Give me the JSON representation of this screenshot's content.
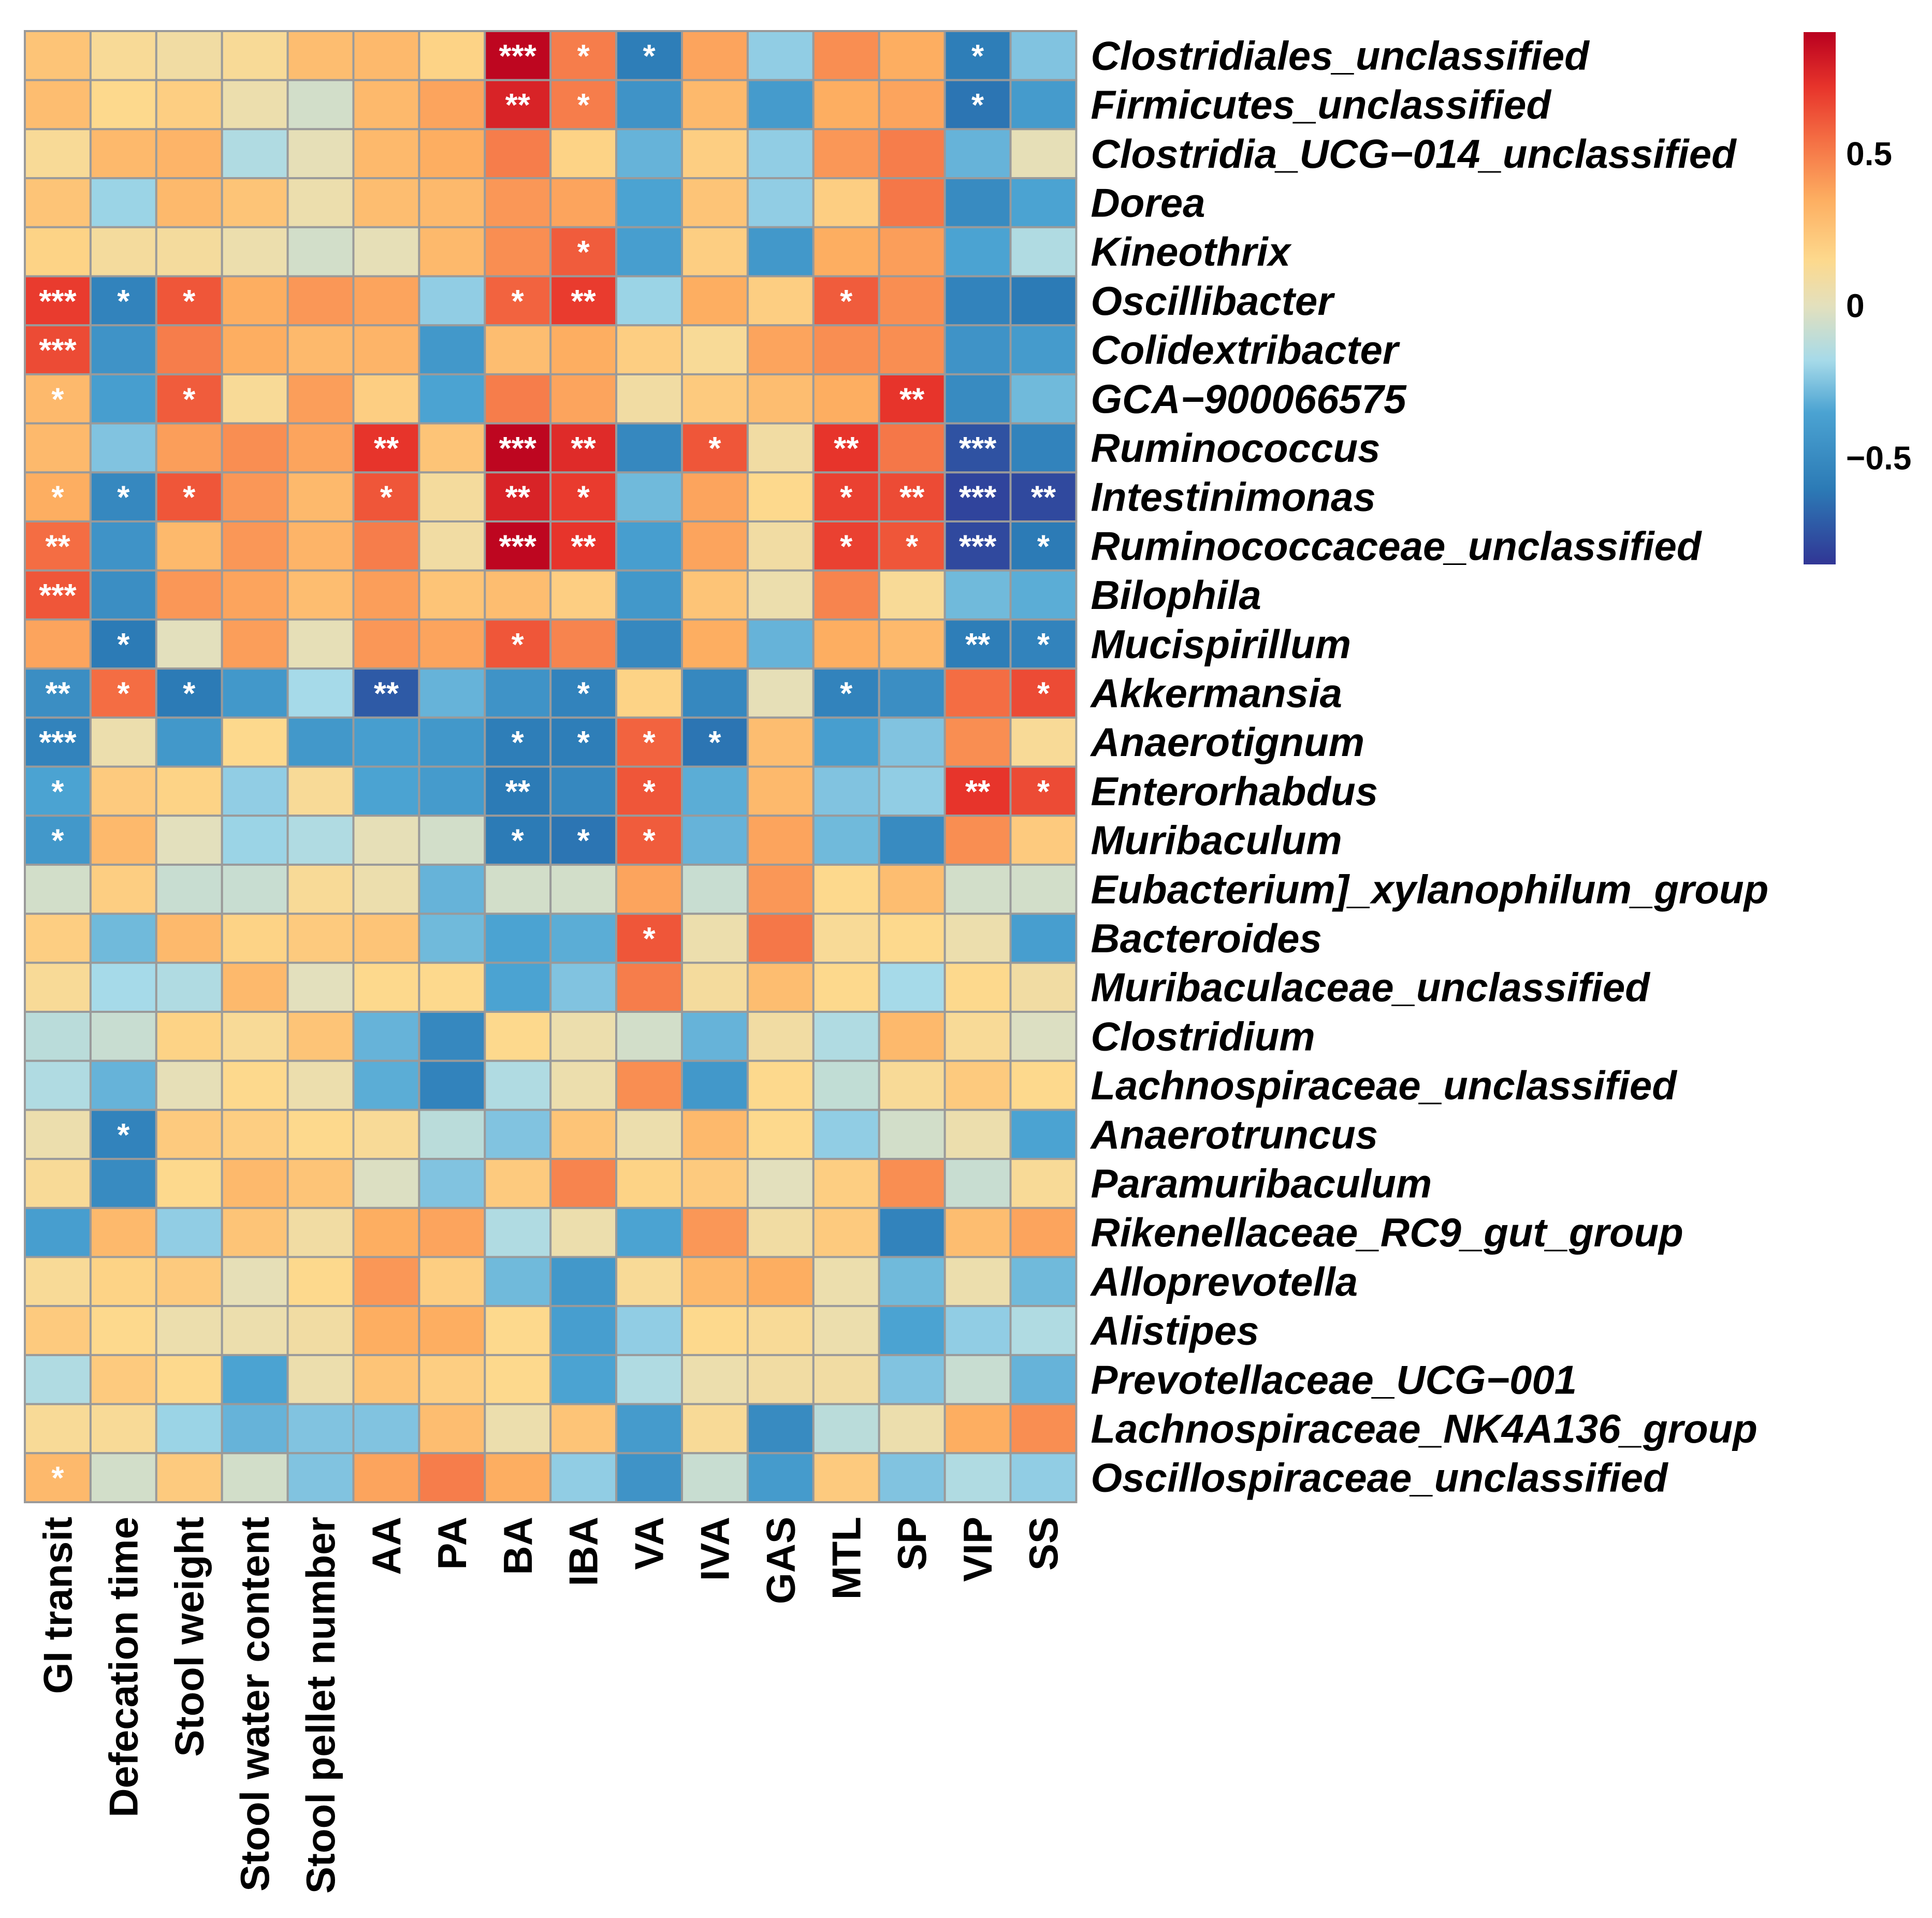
{
  "chart_data": {
    "type": "heatmap",
    "title": "",
    "rows": [
      "Clostridiales_unclassified",
      "Firmicutes_unclassified",
      "Clostridia_UCG−014_unclassified",
      "Dorea",
      "Kineothrix",
      "Oscillibacter",
      "Colidextribacter",
      "GCA−900066575",
      "Ruminococcus",
      "Intestinimonas",
      "Ruminococcaceae_unclassified",
      "Bilophila",
      "Mucispirillum",
      "Akkermansia",
      "Anaerotignum",
      "Enterorhabdus",
      "Muribaculum",
      "Eubacterium]_xylanophilum_group",
      "Bacteroides",
      "Muribaculaceae_unclassified",
      "Clostridium",
      "Lachnospiraceae_unclassified",
      "Anaerotruncus",
      "Paramuribaculum",
      "Rikenellaceae_RC9_gut_group",
      "Alloprevotella",
      "Alistipes",
      "Prevotellaceae_UCG−001",
      "Lachnospiraceae_NK4A136_group",
      "Oscillospiraceae_unclassified"
    ],
    "columns": [
      "GI transit",
      "Defecation time",
      "Stool weight",
      "Stool water content",
      "Stool pellet number",
      "AA",
      "PA",
      "BA",
      "IBA",
      "VA",
      "IVA",
      "GAS",
      "MTL",
      "SP",
      "VIP",
      "SS"
    ],
    "values": [
      [
        0.25,
        0.12,
        0.08,
        0.12,
        0.28,
        0.3,
        0.18,
        0.88,
        0.5,
        -0.58,
        0.38,
        -0.22,
        0.45,
        0.35,
        -0.58,
        -0.25
      ],
      [
        0.28,
        0.15,
        0.2,
        0.05,
        -0.05,
        0.3,
        0.38,
        0.78,
        0.5,
        -0.45,
        0.3,
        -0.4,
        0.35,
        0.38,
        -0.62,
        -0.4
      ],
      [
        0.12,
        0.3,
        0.32,
        -0.15,
        0.02,
        0.3,
        0.35,
        0.5,
        0.18,
        -0.3,
        0.2,
        -0.22,
        0.42,
        0.5,
        -0.3,
        0.02
      ],
      [
        0.25,
        -0.2,
        0.3,
        0.25,
        0.05,
        0.28,
        0.3,
        0.42,
        0.38,
        -0.35,
        0.25,
        -0.22,
        0.2,
        0.52,
        -0.5,
        -0.35
      ],
      [
        0.18,
        0.1,
        0.1,
        0.05,
        -0.05,
        0.02,
        0.3,
        0.45,
        0.6,
        -0.38,
        0.2,
        -0.42,
        0.35,
        0.4,
        -0.35,
        -0.15
      ],
      [
        0.7,
        -0.55,
        0.62,
        0.35,
        0.42,
        0.38,
        -0.22,
        0.58,
        0.7,
        -0.2,
        0.35,
        0.2,
        0.6,
        0.45,
        -0.55,
        -0.6
      ],
      [
        0.65,
        -0.45,
        0.5,
        0.35,
        0.3,
        0.32,
        -0.42,
        0.28,
        0.35,
        0.2,
        0.12,
        0.38,
        0.45,
        0.45,
        -0.45,
        -0.4
      ],
      [
        0.3,
        -0.38,
        0.6,
        0.12,
        0.4,
        0.2,
        -0.35,
        0.5,
        0.38,
        0.08,
        0.22,
        0.28,
        0.35,
        0.72,
        -0.5,
        -0.28
      ],
      [
        0.3,
        -0.25,
        0.4,
        0.45,
        0.38,
        0.72,
        0.25,
        0.88,
        0.75,
        -0.52,
        0.62,
        0.08,
        0.72,
        0.52,
        -0.75,
        -0.55
      ],
      [
        0.35,
        -0.52,
        0.62,
        0.42,
        0.3,
        0.62,
        0.1,
        0.78,
        0.7,
        -0.28,
        0.38,
        0.15,
        0.68,
        0.65,
        -0.8,
        -0.78
      ],
      [
        0.55,
        -0.45,
        0.3,
        0.42,
        0.32,
        0.5,
        0.08,
        0.88,
        0.72,
        -0.38,
        0.38,
        0.08,
        0.68,
        0.62,
        -0.78,
        -0.6
      ],
      [
        0.62,
        -0.48,
        0.42,
        0.38,
        0.28,
        0.4,
        0.25,
        0.28,
        0.2,
        -0.42,
        0.25,
        0.05,
        0.48,
        0.12,
        -0.28,
        -0.32
      ],
      [
        0.38,
        -0.6,
        0.0,
        0.4,
        0.02,
        0.42,
        0.38,
        0.62,
        0.48,
        -0.52,
        0.35,
        -0.3,
        0.35,
        0.3,
        -0.58,
        -0.55
      ],
      [
        -0.48,
        0.55,
        -0.6,
        -0.42,
        -0.18,
        -0.72,
        -0.3,
        -0.45,
        -0.55,
        0.18,
        -0.52,
        0.02,
        -0.55,
        -0.48,
        0.55,
        0.65
      ],
      [
        -0.55,
        0.05,
        -0.42,
        0.15,
        -0.42,
        -0.38,
        -0.42,
        -0.58,
        -0.58,
        0.58,
        -0.62,
        0.28,
        -0.38,
        -0.25,
        0.45,
        0.12
      ],
      [
        -0.35,
        0.22,
        0.18,
        -0.22,
        0.12,
        -0.35,
        -0.4,
        -0.6,
        -0.52,
        0.62,
        -0.32,
        0.3,
        -0.25,
        -0.22,
        0.72,
        0.65
      ],
      [
        -0.42,
        0.3,
        0.0,
        -0.2,
        -0.15,
        0.02,
        -0.05,
        -0.6,
        -0.62,
        0.6,
        -0.3,
        0.38,
        -0.28,
        -0.5,
        0.45,
        0.22
      ],
      [
        -0.05,
        0.2,
        -0.08,
        -0.08,
        0.12,
        0.05,
        -0.3,
        -0.05,
        -0.05,
        0.38,
        -0.08,
        0.42,
        0.15,
        0.28,
        -0.05,
        -0.05
      ],
      [
        0.2,
        -0.28,
        0.3,
        0.18,
        0.22,
        0.25,
        -0.28,
        -0.35,
        -0.32,
        0.62,
        0.05,
        0.52,
        0.12,
        0.15,
        0.05,
        -0.38
      ],
      [
        0.12,
        -0.18,
        -0.15,
        0.3,
        0.0,
        0.15,
        0.15,
        -0.35,
        -0.25,
        0.5,
        0.1,
        0.28,
        0.15,
        -0.18,
        0.15,
        0.08
      ],
      [
        -0.12,
        -0.08,
        0.18,
        0.12,
        0.25,
        -0.3,
        -0.52,
        0.15,
        0.05,
        -0.05,
        -0.3,
        0.08,
        -0.15,
        0.3,
        0.12,
        -0.02
      ],
      [
        -0.15,
        -0.3,
        0.02,
        0.15,
        0.05,
        -0.32,
        -0.55,
        -0.15,
        0.05,
        0.45,
        -0.42,
        0.15,
        -0.1,
        0.12,
        0.22,
        0.15
      ],
      [
        0.05,
        -0.55,
        0.22,
        0.2,
        0.15,
        0.12,
        -0.12,
        -0.25,
        0.25,
        0.05,
        0.3,
        0.15,
        -0.22,
        -0.05,
        0.05,
        -0.35
      ],
      [
        0.12,
        -0.5,
        0.15,
        0.3,
        0.25,
        -0.02,
        -0.25,
        0.22,
        0.48,
        0.18,
        0.22,
        0.0,
        0.2,
        0.45,
        -0.08,
        0.12
      ],
      [
        -0.38,
        0.3,
        -0.22,
        0.25,
        0.08,
        0.35,
        0.38,
        -0.15,
        0.05,
        -0.35,
        0.42,
        0.08,
        0.22,
        -0.55,
        0.28,
        0.38
      ],
      [
        0.12,
        0.18,
        0.22,
        0.02,
        0.15,
        0.42,
        0.2,
        -0.28,
        -0.42,
        0.12,
        0.3,
        0.35,
        0.05,
        -0.28,
        0.05,
        -0.28
      ],
      [
        0.22,
        0.15,
        0.05,
        0.05,
        0.08,
        0.35,
        0.35,
        0.15,
        -0.38,
        -0.22,
        0.15,
        0.12,
        0.05,
        -0.35,
        -0.22,
        -0.15
      ],
      [
        -0.15,
        0.22,
        0.15,
        -0.35,
        0.05,
        0.25,
        0.2,
        0.15,
        -0.35,
        -0.15,
        0.05,
        0.08,
        0.08,
        -0.25,
        -0.08,
        -0.3
      ],
      [
        0.12,
        0.12,
        -0.2,
        -0.3,
        -0.25,
        -0.25,
        0.28,
        0.05,
        0.25,
        -0.4,
        0.12,
        -0.5,
        -0.12,
        0.05,
        0.35,
        0.45
      ],
      [
        0.3,
        -0.05,
        0.22,
        -0.05,
        -0.25,
        0.38,
        0.5,
        0.35,
        -0.22,
        -0.45,
        -0.08,
        -0.4,
        0.22,
        -0.25,
        -0.15,
        -0.22
      ]
    ],
    "significance": [
      [
        "",
        "",
        "",
        "",
        "",
        "",
        "",
        "***",
        "*",
        "*",
        "",
        "",
        "",
        "",
        "*",
        ""
      ],
      [
        "",
        "",
        "",
        "",
        "",
        "",
        "",
        "**",
        "*",
        "",
        "",
        "",
        "",
        "",
        "*",
        ""
      ],
      [
        "",
        "",
        "",
        "",
        "",
        "",
        "",
        "",
        "",
        "",
        "",
        "",
        "",
        "",
        "",
        ""
      ],
      [
        "",
        "",
        "",
        "",
        "",
        "",
        "",
        "",
        "",
        "",
        "",
        "",
        "",
        "",
        "",
        ""
      ],
      [
        "",
        "",
        "",
        "",
        "",
        "",
        "",
        "",
        "*",
        "",
        "",
        "",
        "",
        "",
        "",
        ""
      ],
      [
        "***",
        "*",
        "*",
        "",
        "",
        "",
        "",
        "*",
        "**",
        "",
        "",
        "",
        "*",
        "",
        "",
        ""
      ],
      [
        "***",
        "",
        "",
        "",
        "",
        "",
        "",
        "",
        "",
        "",
        "",
        "",
        "",
        "",
        "",
        ""
      ],
      [
        "*",
        "",
        "*",
        "",
        "",
        "",
        "",
        "",
        "",
        "",
        "",
        "",
        "",
        "**",
        "",
        ""
      ],
      [
        "",
        "",
        "",
        "",
        "",
        "**",
        "",
        "***",
        "**",
        "",
        "*",
        "",
        "**",
        "",
        "***",
        ""
      ],
      [
        "*",
        "*",
        "*",
        "",
        "",
        "*",
        "",
        "**",
        "*",
        "",
        "",
        "",
        "*",
        "**",
        "***",
        "**"
      ],
      [
        "**",
        "",
        "",
        "",
        "",
        "",
        "",
        "***",
        "**",
        "",
        "",
        "",
        "*",
        "*",
        "***",
        "*"
      ],
      [
        "***",
        "",
        "",
        "",
        "",
        "",
        "",
        "",
        "",
        "",
        "",
        "",
        "",
        "",
        "",
        ""
      ],
      [
        "",
        "*",
        "",
        "",
        "",
        "",
        "",
        "*",
        "",
        "",
        "",
        "",
        "",
        "",
        "**",
        "*"
      ],
      [
        "**",
        "*",
        "*",
        "",
        "",
        "**",
        "",
        "",
        "*",
        "",
        "",
        "",
        "*",
        "",
        "",
        "*"
      ],
      [
        "***",
        "",
        "",
        "",
        "",
        "",
        "",
        "*",
        "*",
        "*",
        "*",
        "",
        "",
        "",
        "",
        ""
      ],
      [
        "*",
        "",
        "",
        "",
        "",
        "",
        "",
        "**",
        "",
        "*",
        "",
        "",
        "",
        "",
        "**",
        "*"
      ],
      [
        "*",
        "",
        "",
        "",
        "",
        "",
        "",
        "*",
        "*",
        "*",
        "",
        "",
        "",
        "",
        "",
        ""
      ],
      [
        "",
        "",
        "",
        "",
        "",
        "",
        "",
        "",
        "",
        "",
        "",
        "",
        "",
        "",
        "",
        ""
      ],
      [
        "",
        "",
        "",
        "",
        "",
        "",
        "",
        "",
        "",
        "*",
        "",
        "",
        "",
        "",
        "",
        ""
      ],
      [
        "",
        "",
        "",
        "",
        "",
        "",
        "",
        "",
        "",
        "",
        "",
        "",
        "",
        "",
        "",
        ""
      ],
      [
        "",
        "",
        "",
        "",
        "",
        "",
        "",
        "",
        "",
        "",
        "",
        "",
        "",
        "",
        "",
        ""
      ],
      [
        "",
        "",
        "",
        "",
        "",
        "",
        "",
        "",
        "",
        "",
        "",
        "",
        "",
        "",
        "",
        ""
      ],
      [
        "",
        "*",
        "",
        "",
        "",
        "",
        "",
        "",
        "",
        "",
        "",
        "",
        "",
        "",
        "",
        ""
      ],
      [
        "",
        "",
        "",
        "",
        "",
        "",
        "",
        "",
        "",
        "",
        "",
        "",
        "",
        "",
        "",
        ""
      ],
      [
        "",
        "",
        "",
        "",
        "",
        "",
        "",
        "",
        "",
        "",
        "",
        "",
        "",
        "",
        "",
        ""
      ],
      [
        "",
        "",
        "",
        "",
        "",
        "",
        "",
        "",
        "",
        "",
        "",
        "",
        "",
        "",
        "",
        ""
      ],
      [
        "",
        "",
        "",
        "",
        "",
        "",
        "",
        "",
        "",
        "",
        "",
        "",
        "",
        "",
        "",
        ""
      ],
      [
        "",
        "",
        "",
        "",
        "",
        "",
        "",
        "",
        "",
        "",
        "",
        "",
        "",
        "",
        "",
        ""
      ],
      [
        "",
        "",
        "",
        "",
        "",
        "",
        "",
        "",
        "",
        "",
        "",
        "",
        "",
        "",
        "",
        ""
      ],
      [
        "*",
        "",
        "",
        "",
        "",
        "",
        "",
        "",
        "",
        "",
        "",
        "",
        "",
        "",
        "",
        ""
      ]
    ],
    "color_scale": {
      "min": -0.85,
      "max": 0.9,
      "stops": [
        {
          "value": -0.85,
          "color": "#313695"
        },
        {
          "value": -0.6,
          "color": "#2c7bb6"
        },
        {
          "value": -0.35,
          "color": "#4ba3d2"
        },
        {
          "value": -0.18,
          "color": "#a6dae9"
        },
        {
          "value": 0.0,
          "color": "#e3e0bd"
        },
        {
          "value": 0.15,
          "color": "#fdd98d"
        },
        {
          "value": 0.35,
          "color": "#fdae61"
        },
        {
          "value": 0.55,
          "color": "#f46d43"
        },
        {
          "value": 0.72,
          "color": "#e7342b"
        },
        {
          "value": 0.9,
          "color": "#b9001f"
        }
      ]
    },
    "legend": {
      "ticks": [
        0.5,
        0,
        -0.5
      ],
      "tick_labels": [
        "0.5",
        "0",
        "−0.5"
      ],
      "placement": "top-right"
    },
    "grid_color": "#9a9a9a"
  }
}
